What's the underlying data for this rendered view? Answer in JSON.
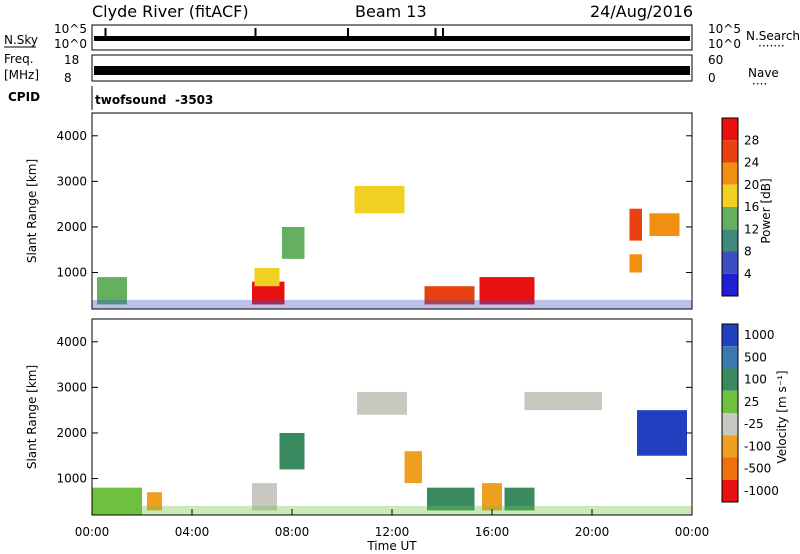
{
  "header": {
    "station": "Clyde River (fitACF)",
    "beam": "Beam 13",
    "date": "24/Aug/2016"
  },
  "noise_panel": {
    "left_label": "N.Sky",
    "right_label": "N.Search",
    "right_marker": "·······",
    "ticks_left": [
      "10^5",
      "10^0"
    ],
    "ticks_right": [
      "10^5",
      "10^0"
    ]
  },
  "freq_panel": {
    "left_label_1": "Freq.",
    "left_label_2": "[MHz]",
    "ticks_left": [
      "18",
      "8"
    ],
    "ticks_right": [
      "60",
      "0"
    ],
    "right_label": "Nave",
    "right_marker": "····"
  },
  "cpid": {
    "label": "CPID",
    "program": "twofsound",
    "id": "-3503"
  },
  "power_panel": {
    "ylabel": "Slant Range [km]",
    "yticks": [
      "1000",
      "2000",
      "3000",
      "4000"
    ],
    "colorbar_label": "Power [dB]",
    "colorbar_ticks": [
      "4",
      "8",
      "12",
      "16",
      "20",
      "24",
      "28"
    ],
    "colors": [
      "#1f1fd6",
      "#3b4fc0",
      "#3f8a7a",
      "#64b060",
      "#f0d020",
      "#f09010",
      "#e84010",
      "#e81010"
    ]
  },
  "velocity_panel": {
    "ylabel": "Slant Range [km]",
    "yticks": [
      "1000",
      "2000",
      "3000",
      "4000"
    ],
    "colorbar_label": "Velocity [m s⁻¹]",
    "colorbar_ticks": [
      "1000",
      "500",
      "100",
      "25",
      "-25",
      "-100",
      "-500",
      "-1000"
    ],
    "colors": [
      "#2040c0",
      "#3a78b0",
      "#3a8a60",
      "#70c040",
      "#c8c8c0",
      "#f0a020",
      "#f07010",
      "#e81010"
    ]
  },
  "xaxis": {
    "ticks": [
      "00:00",
      "04:00",
      "08:00",
      "12:00",
      "16:00",
      "20:00",
      "00:00"
    ],
    "label": "Time UT"
  },
  "chart_data": [
    {
      "type": "heatmap",
      "quantity": "Power",
      "x_range": [
        "00:00",
        "24:00"
      ],
      "y_range_km": [
        200,
        4500
      ],
      "colorbar": {
        "unit": "dB",
        "ticks": [
          4,
          8,
          12,
          16,
          20,
          24,
          28
        ]
      },
      "patches": [
        {
          "t0": 0.2,
          "t1": 1.4,
          "r0": 300,
          "r1": 900,
          "level": 3
        },
        {
          "t0": 6.4,
          "t1": 7.7,
          "r0": 300,
          "r1": 800,
          "level": 7
        },
        {
          "t0": 6.5,
          "t1": 7.5,
          "r0": 700,
          "r1": 1100,
          "level": 4
        },
        {
          "t0": 7.6,
          "t1": 8.5,
          "r0": 1300,
          "r1": 2000,
          "level": 3
        },
        {
          "t0": 10.5,
          "t1": 12.5,
          "r0": 2300,
          "r1": 2900,
          "level": 4
        },
        {
          "t0": 13.3,
          "t1": 15.3,
          "r0": 300,
          "r1": 700,
          "level": 6
        },
        {
          "t0": 15.5,
          "t1": 17.7,
          "r0": 300,
          "r1": 900,
          "level": 7
        },
        {
          "t0": 21.5,
          "t1": 22.0,
          "r0": 1700,
          "r1": 2400,
          "level": 6
        },
        {
          "t0": 22.3,
          "t1": 23.5,
          "r0": 1800,
          "r1": 2300,
          "level": 5
        },
        {
          "t0": 21.5,
          "t1": 22.0,
          "r0": 1000,
          "r1": 1400,
          "level": 5
        }
      ]
    },
    {
      "type": "heatmap",
      "quantity": "Velocity",
      "x_range": [
        "00:00",
        "24:00"
      ],
      "y_range_km": [
        200,
        4500
      ],
      "colorbar": {
        "unit": "m s-1",
        "ticks": [
          1000,
          500,
          100,
          25,
          -25,
          -100,
          -500,
          -1000
        ]
      },
      "patches": [
        {
          "t0": 0.0,
          "t1": 2.0,
          "r0": 200,
          "r1": 800,
          "level": 3
        },
        {
          "t0": 2.2,
          "t1": 2.8,
          "r0": 300,
          "r1": 700,
          "level": 5
        },
        {
          "t0": 6.4,
          "t1": 7.4,
          "r0": 300,
          "r1": 900,
          "level": 4
        },
        {
          "t0": 7.5,
          "t1": 8.5,
          "r0": 1200,
          "r1": 2000,
          "level": 2
        },
        {
          "t0": 10.6,
          "t1": 12.6,
          "r0": 2400,
          "r1": 2900,
          "level": 4
        },
        {
          "t0": 12.5,
          "t1": 13.2,
          "r0": 900,
          "r1": 1600,
          "level": 5
        },
        {
          "t0": 13.4,
          "t1": 15.3,
          "r0": 300,
          "r1": 800,
          "level": 2
        },
        {
          "t0": 15.6,
          "t1": 16.4,
          "r0": 300,
          "r1": 900,
          "level": 5
        },
        {
          "t0": 16.5,
          "t1": 17.7,
          "r0": 300,
          "r1": 800,
          "level": 2
        },
        {
          "t0": 17.3,
          "t1": 20.4,
          "r0": 2500,
          "r1": 2900,
          "level": 4
        },
        {
          "t0": 21.8,
          "t1": 23.8,
          "r0": 1500,
          "r1": 2500,
          "level": 0
        }
      ]
    }
  ]
}
